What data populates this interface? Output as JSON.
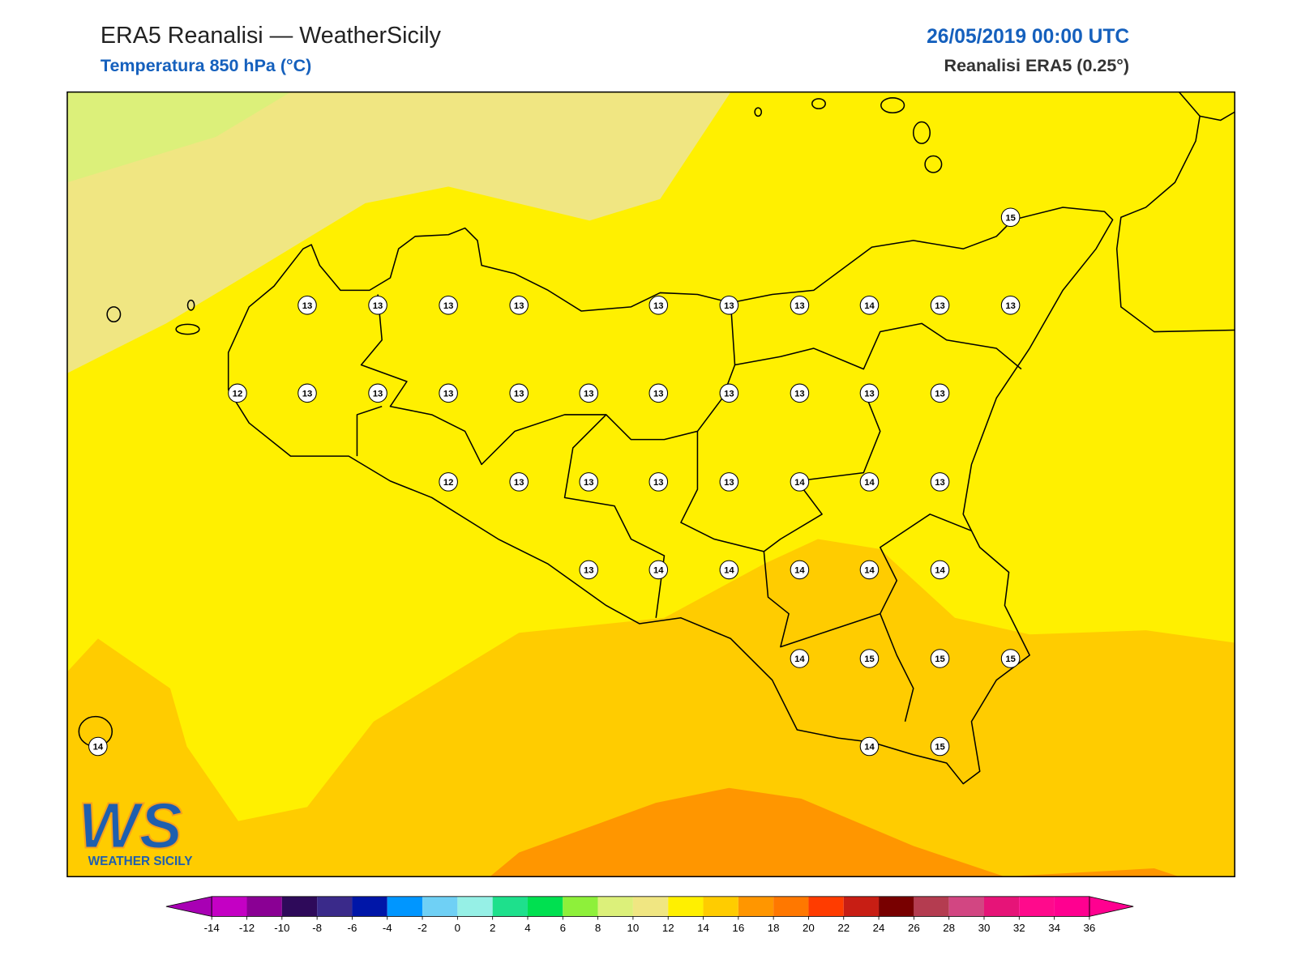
{
  "header": {
    "title": "ERA5 Reanalisi — WeatherSicily",
    "subtitle": "Temperatura 850 hPa (°C)",
    "date": "26/05/2019 00:00 UTC",
    "source": "Reanalisi ERA5 (0.25°)"
  },
  "map": {
    "values": [
      13,
      13,
      13,
      13,
      13,
      13,
      13,
      14,
      13,
      13,
      12,
      13,
      13,
      13,
      13,
      13,
      13,
      13,
      13,
      13,
      13,
      12,
      13,
      13,
      13,
      13,
      14,
      14,
      13,
      13,
      14,
      14,
      14,
      14,
      14,
      14,
      15,
      15,
      15,
      14,
      14,
      15,
      15
    ]
  },
  "colorbar": {
    "ticks": [
      -14,
      -12,
      -10,
      -8,
      -6,
      -4,
      -2,
      0,
      2,
      4,
      6,
      8,
      10,
      12,
      14,
      16,
      18,
      20,
      22,
      24,
      26,
      28,
      30,
      32,
      34,
      36
    ],
    "colors": [
      "#c400c4",
      "#8a0094",
      "#2e0a5a",
      "#3a2a8a",
      "#0016a8",
      "#0096ff",
      "#6fd0f5",
      "#96f0e6",
      "#1ee08c",
      "#00e050",
      "#8ef03a",
      "#dcf07a",
      "#f0e682",
      "#fff000",
      "#ffcc00",
      "#ff9600",
      "#ff7800",
      "#ff3c00",
      "#c81e14",
      "#780000",
      "#b43c50",
      "#d24682",
      "#e61478",
      "#ff0a8c",
      "#ff0090"
    ],
    "under_color": "#a800b4",
    "over_color": "#ff0090"
  },
  "logo": {
    "mark": "WS",
    "text": "WEATHER SICILY"
  }
}
